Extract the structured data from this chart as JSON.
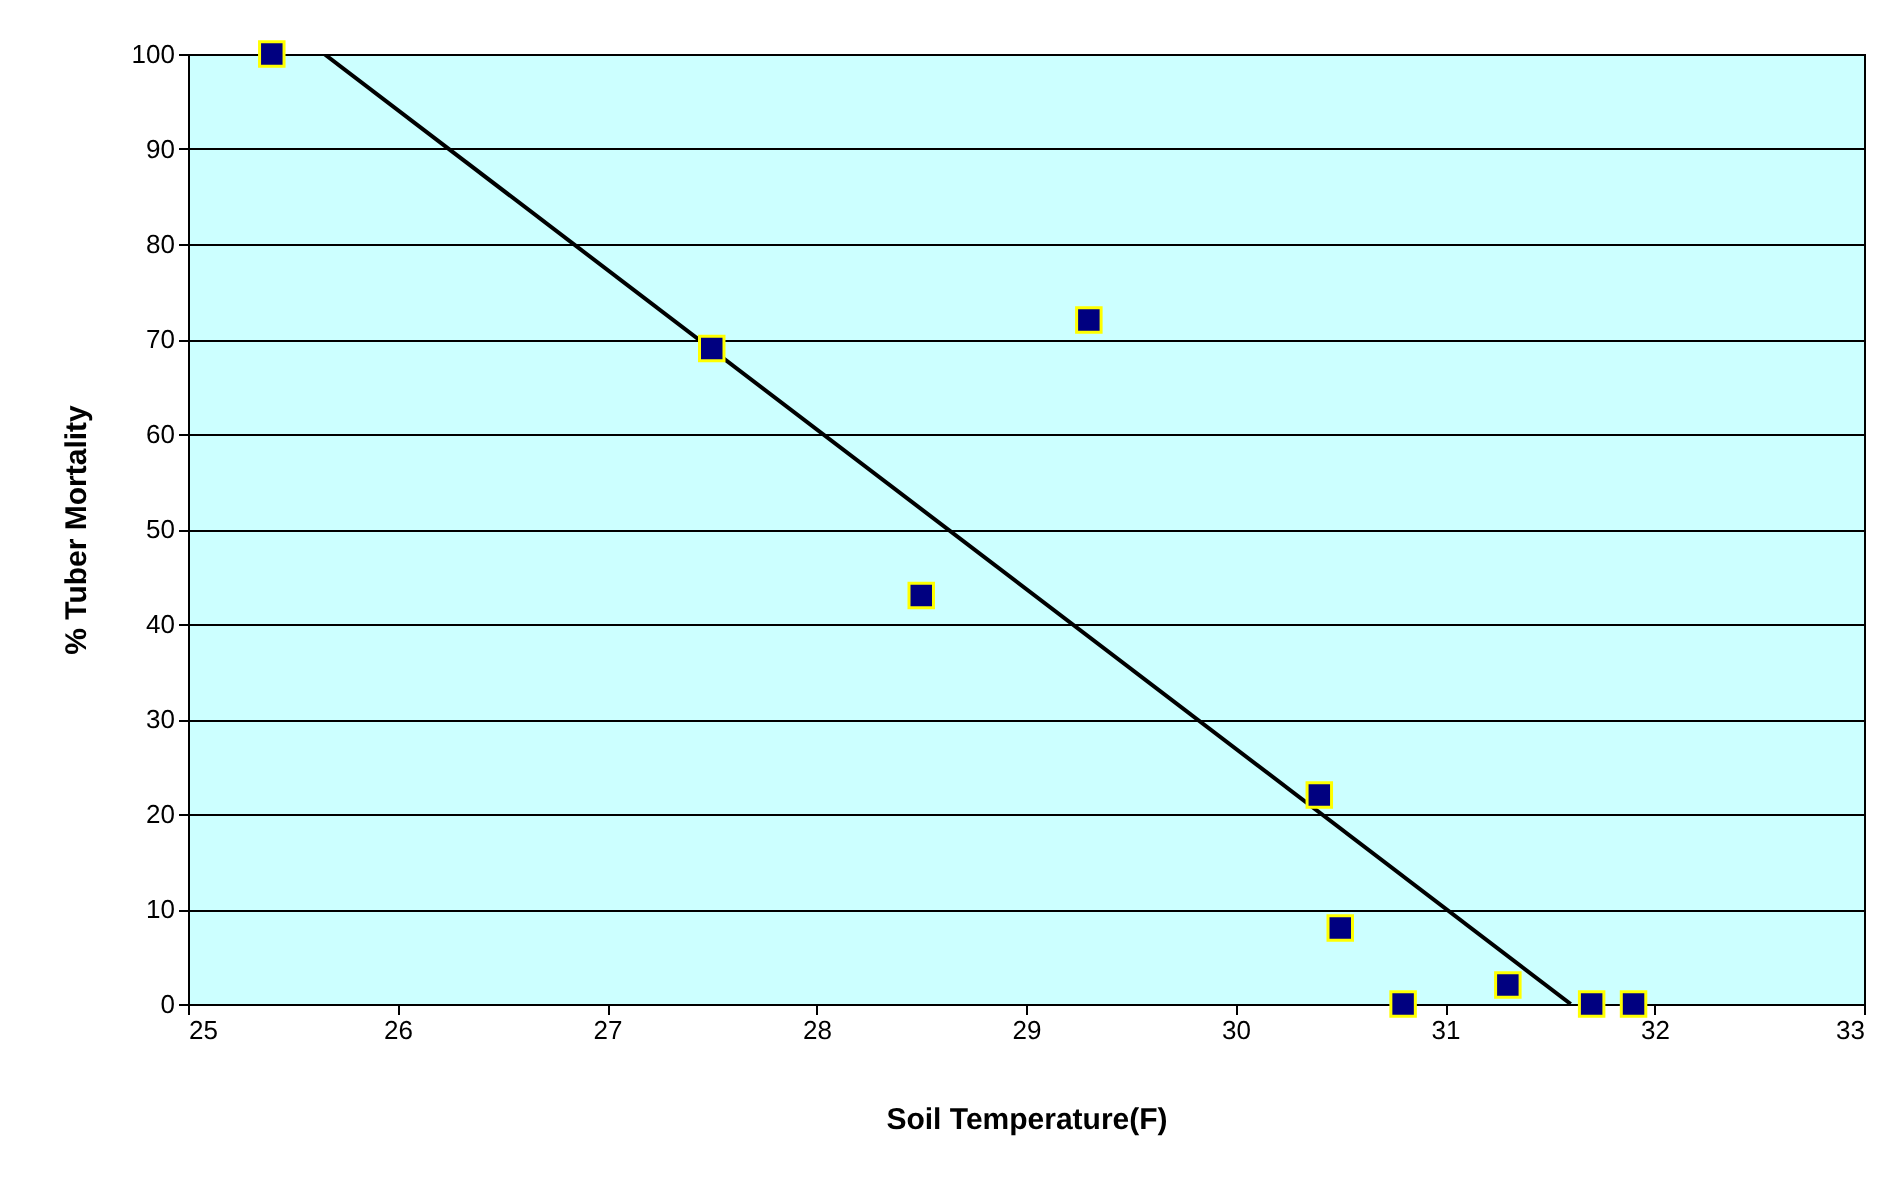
{
  "chart_data": {
    "type": "scatter",
    "xlabel": "Soil Temperature(F)",
    "ylabel": "% Tuber Mortality",
    "series": [
      {
        "color": "#000080",
        "x": [
          25.4,
          27.5,
          28.5,
          29.3,
          30.4,
          30.5,
          30.8,
          31.3,
          31.7,
          31.9
        ],
        "values": [
          100,
          69,
          43,
          72,
          22,
          8,
          0,
          2,
          0,
          0
        ],
        "marker": "square"
      },
      {
        "type": "line",
        "color": "#000000",
        "x": [
          25.65,
          31.6
        ],
        "values": [
          100,
          0
        ],
        "line_style": "solid"
      }
    ],
    "xlim": [
      25,
      33
    ],
    "xticks": [
      25,
      26,
      27,
      28,
      29,
      30,
      31,
      32,
      33
    ],
    "ylim": [
      0,
      100
    ],
    "yticks": [
      0,
      10,
      20,
      30,
      40,
      50,
      60,
      70,
      80,
      90,
      100
    ],
    "grid": "y"
  }
}
